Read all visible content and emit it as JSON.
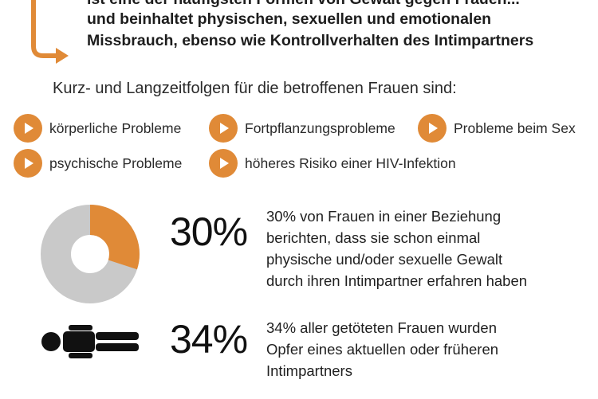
{
  "intro": {
    "line1": "ist eine der häufigsten Formen von Gewalt gegen Frauen...",
    "line2": "und beinhaltet physischen, sexuellen und emotionalen",
    "line3": "Missbrauch, ebenso wie Kontrollverhalten des Intimpartners"
  },
  "consequences": {
    "title": "Kurz- und Langzeitfolgen für die betroffenen Frauen sind:",
    "items": [
      {
        "label": "körperliche Probleme"
      },
      {
        "label": "Fortpflanzungsprobleme"
      },
      {
        "label": "Probleme beim Sex"
      },
      {
        "label": "psychische Probleme"
      },
      {
        "label": "höheres Risiko einer HIV-Infektion"
      }
    ]
  },
  "stats": [
    {
      "percent": "30%",
      "value": 30,
      "line1": "30% von Frauen in einer Beziehung",
      "line2": "berichten, dass sie schon einmal",
      "line3": "physische und/oder sexuelle Gewalt",
      "line4": "durch ihren Intimpartner erfahren haben"
    },
    {
      "percent": "34%",
      "line1": "34% aller getöteten Frauen wurden",
      "line2": "Opfer eines aktuellen oder früheren",
      "line3": "Intimpartners"
    }
  ],
  "colors": {
    "accent": "#e08a37",
    "gray": "#c9c9c9",
    "text": "#1b1b1b"
  }
}
